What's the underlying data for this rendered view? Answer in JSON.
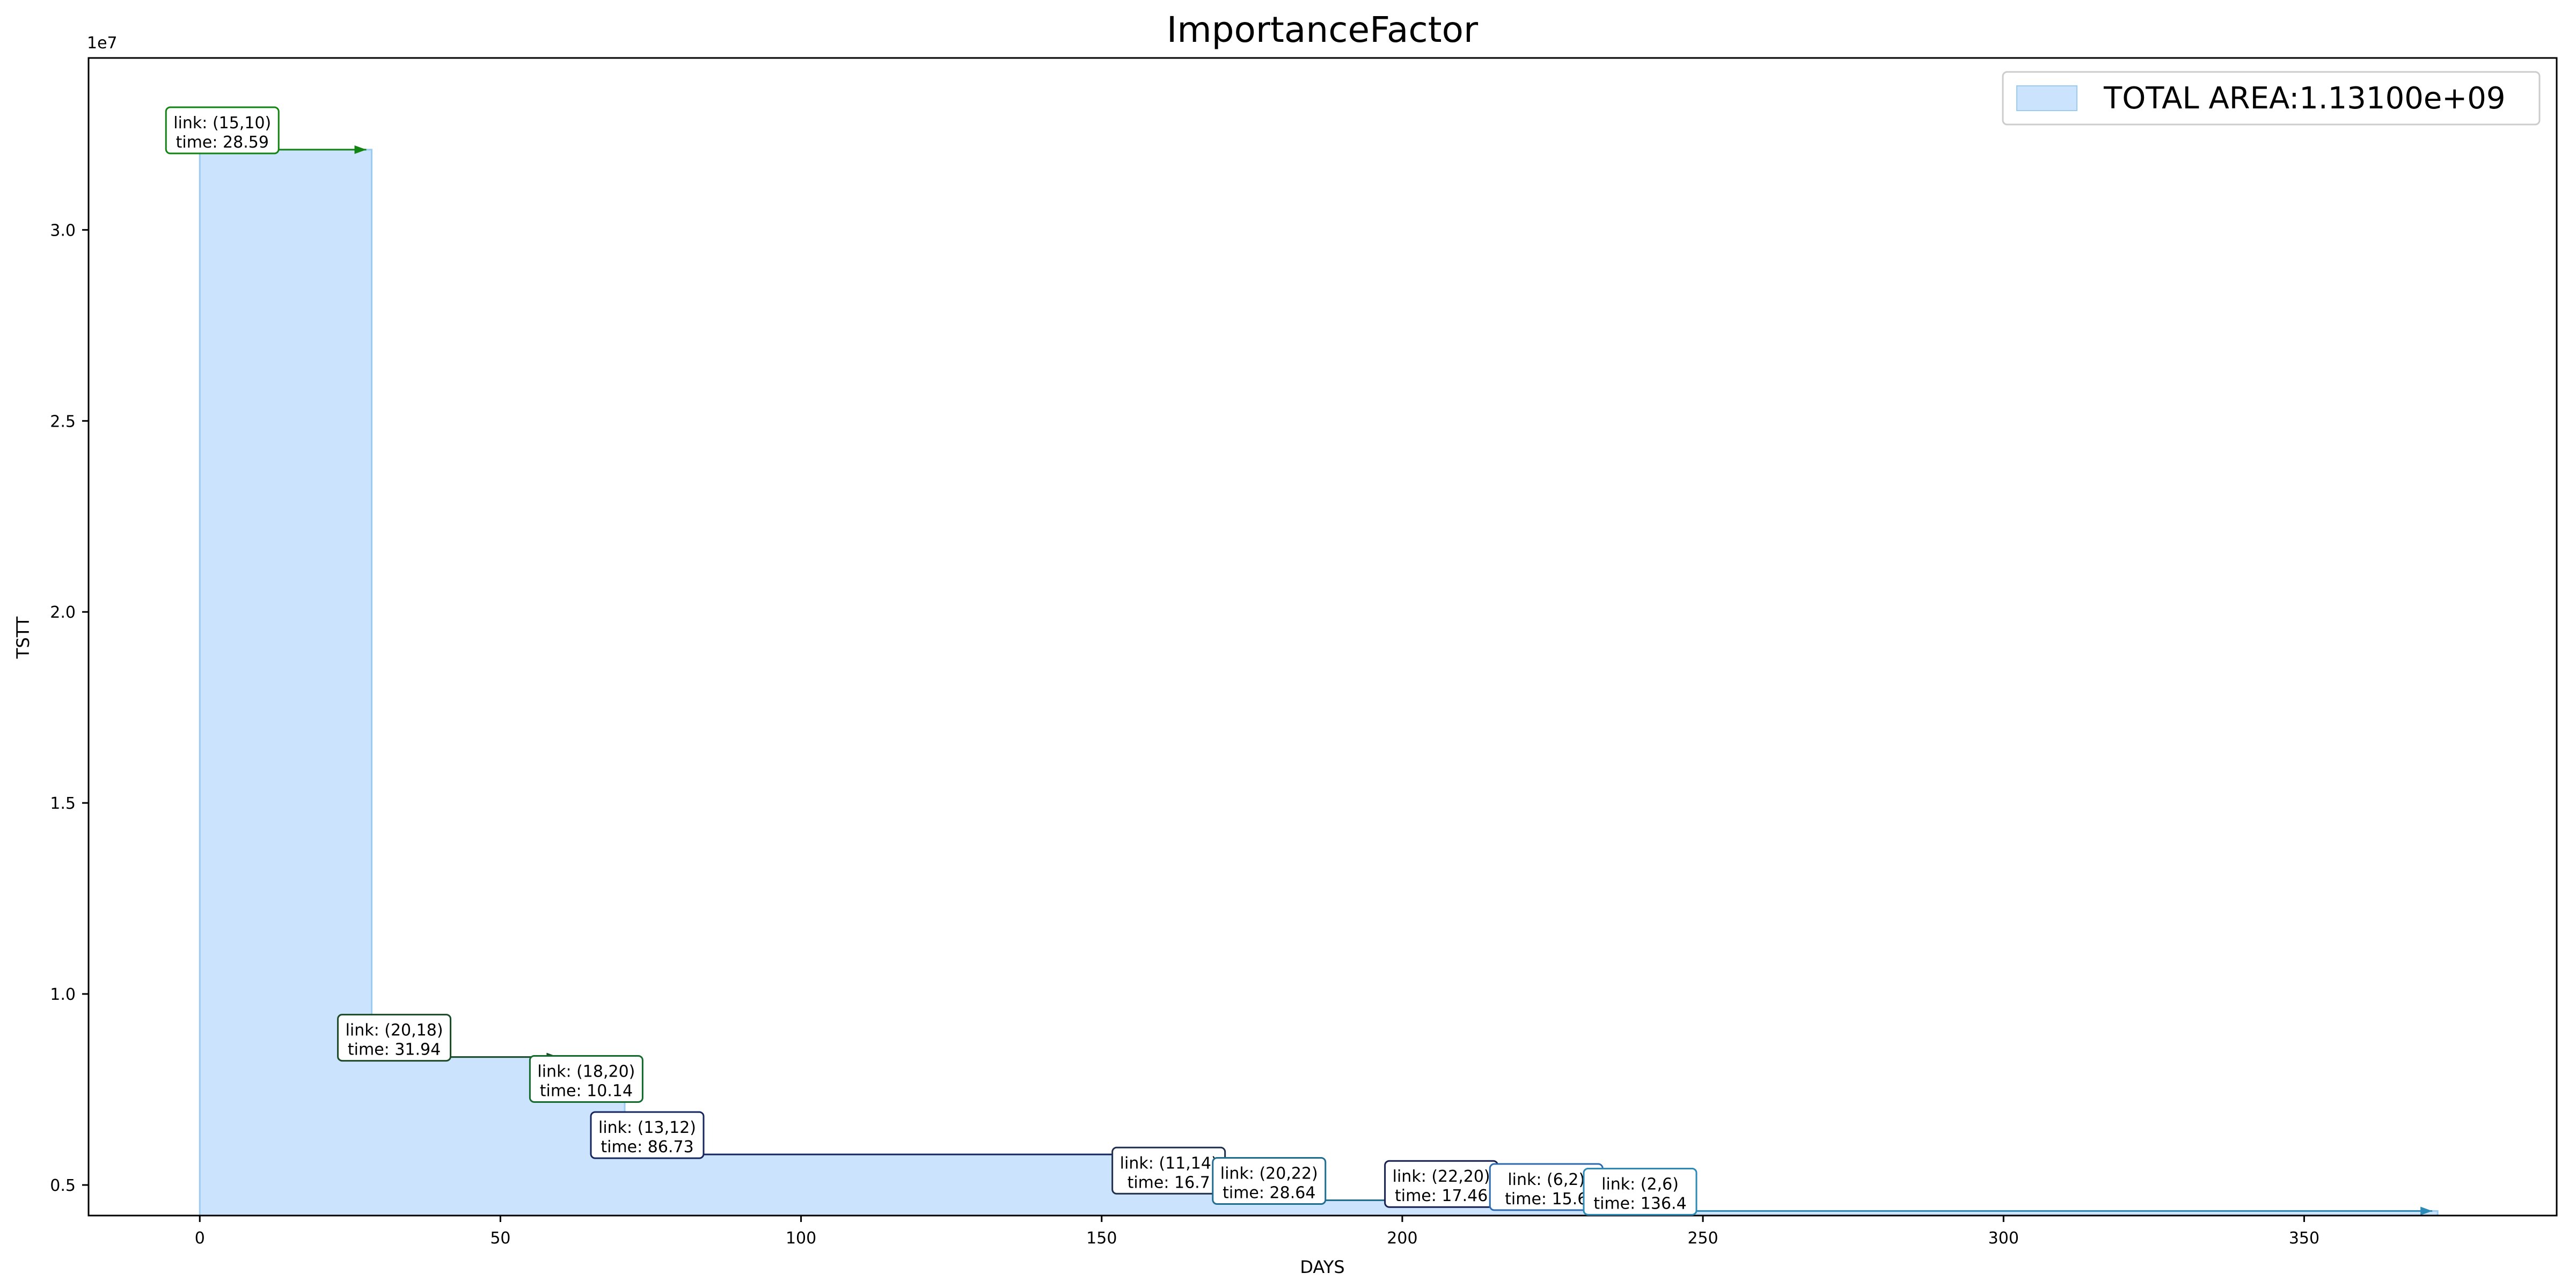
{
  "chart_data": {
    "type": "area",
    "title": "ImportanceFactor",
    "xlabel": "DAYS",
    "ylabel": "TSTT",
    "y_offset_label": "1e7",
    "xlim": [
      -18.5,
      392
    ],
    "ylim": [
      4200000,
      34500000
    ],
    "x_ticks": [
      0,
      50,
      100,
      150,
      200,
      250,
      300,
      350
    ],
    "y_ticks": [
      5000000,
      10000000,
      15000000,
      20000000,
      25000000,
      30000000
    ],
    "x_tick_labels": [
      "0",
      "50",
      "100",
      "150",
      "200",
      "250",
      "300",
      "350"
    ],
    "y_tick_labels": [
      "0.5",
      "1.0",
      "1.5",
      "2.0",
      "2.5",
      "3.0"
    ],
    "grid": false,
    "legend_position": "top-right",
    "legend": {
      "label": "TOTAL AREA:1.13100e+09",
      "color": "#cce3fd"
    },
    "fill_color": "#cce3fd",
    "fill_edge": "#9ccbf2",
    "steps": [
      {
        "link": "(15,10)",
        "time": "28.59",
        "start": 0,
        "end": 28.59,
        "tstt": 32100000,
        "color": "#118411"
      },
      {
        "link": "(20,18)",
        "time": "31.94",
        "start": 28.59,
        "end": 60.53,
        "tstt": 8350000,
        "color": "#1a4a26"
      },
      {
        "link": "(18,20)",
        "time": "10.14",
        "start": 60.53,
        "end": 70.67,
        "tstt": 7270000,
        "color": "#116b2a"
      },
      {
        "link": "(13,12)",
        "time": "86.73",
        "start": 70.67,
        "end": 157.4,
        "tstt": 5800000,
        "color": "#16265f"
      },
      {
        "link": "(11,14)",
        "time": "16.7",
        "start": 157.4,
        "end": 174.1,
        "tstt": 4870000,
        "color": "#1d2f4a"
      },
      {
        "link": "(20,22)",
        "time": "28.64",
        "start": 174.1,
        "end": 202.74,
        "tstt": 4600000,
        "color": "#1f6e90"
      },
      {
        "link": "(22,20)",
        "time": "17.46",
        "start": 202.74,
        "end": 220.2,
        "tstt": 4520000,
        "color": "#162050"
      },
      {
        "link": "(6,2)",
        "time": "15.6",
        "start": 220.2,
        "end": 235.8,
        "tstt": 4440000,
        "color": "#2c6bb0"
      },
      {
        "link": "(2,6)",
        "time": "136.4",
        "start": 235.8,
        "end": 372.2,
        "tstt": 4320000,
        "color": "#2b8ab8"
      }
    ],
    "annotations": [
      {
        "line1": "link: (15,10)",
        "line2": "time: 28.59",
        "color": "#118411"
      },
      {
        "line1": "link: (20,18)",
        "line2": "time: 31.94",
        "color": "#1a4a26"
      },
      {
        "line1": "link: (18,20)",
        "line2": "time: 10.14",
        "color": "#116b2a"
      },
      {
        "line1": "link: (13,12)",
        "line2": "time: 86.73",
        "color": "#16265f"
      },
      {
        "line1": "link: (11,14)",
        "line2": "time: 16.7",
        "color": "#1d2f4a"
      },
      {
        "line1": "link: (20,22)",
        "line2": "time: 28.64",
        "color": "#1f6e90"
      },
      {
        "line1": "link: (22,20)",
        "line2": "time: 17.46",
        "color": "#162050"
      },
      {
        "line1": "link: (6,2)",
        "line2": "time: 15.6",
        "color": "#2c6bb0"
      },
      {
        "line1": "link: (2,6)",
        "line2": "time: 136.4",
        "color": "#2b8ab8"
      }
    ]
  }
}
